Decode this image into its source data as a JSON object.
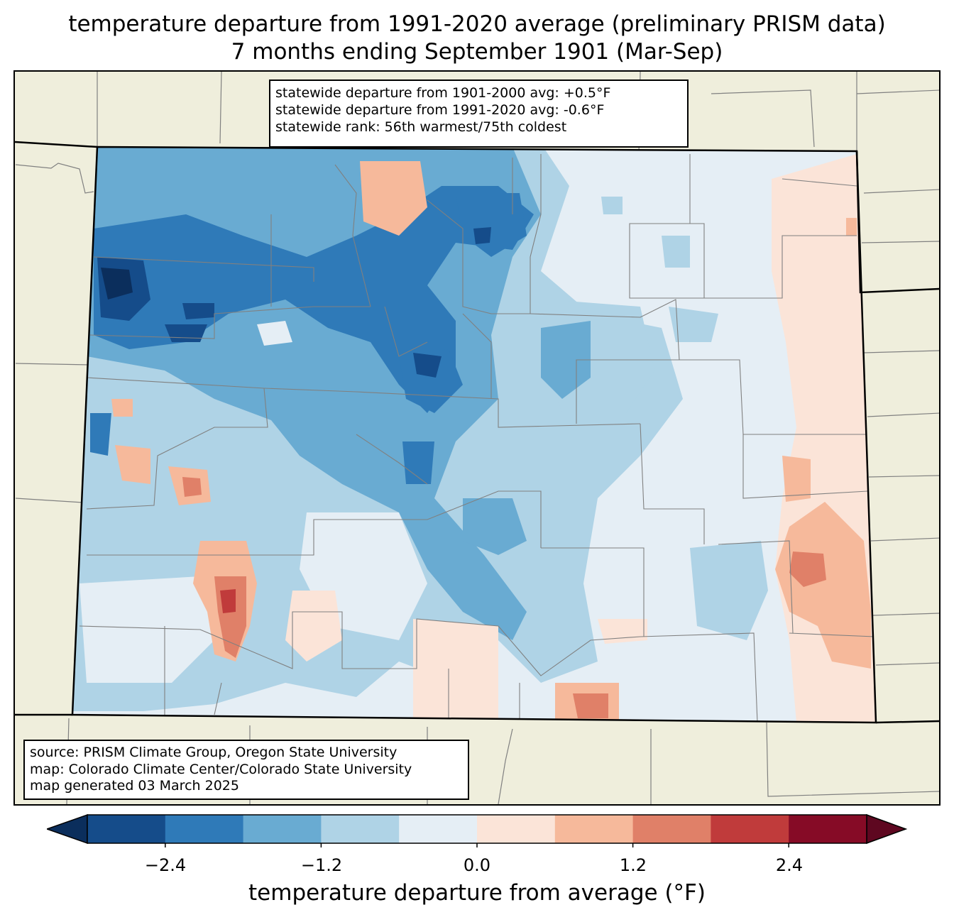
{
  "title_line1": "temperature departure from 1991-2020 average (preliminary PRISM data)",
  "title_line2": "7 months ending September 1901 (Mar-Sep)",
  "stats": {
    "line1": "statewide departure from 1901-2000 avg: +0.5°F",
    "line2": "statewide departure from 1991-2020 avg: -0.6°F",
    "line3": "statewide rank: 56th warmest/75th coldest"
  },
  "source": {
    "line1": "source: PRISM Climate Group, Oregon State University",
    "line2": "map: Colorado Climate Center/Colorado State University",
    "line3": "map generated 03 March 2025"
  },
  "colorbar": {
    "label": "temperature departure from average (°F)",
    "ticks": [
      "−2.4",
      "−1.2",
      "0.0",
      "1.2",
      "2.4"
    ],
    "tick_values": [
      -2.4,
      -1.2,
      0.0,
      1.2,
      2.4
    ],
    "bin_edges": [
      -3.0,
      -2.4,
      -1.8,
      -1.2,
      -0.6,
      0.0,
      0.6,
      1.2,
      1.8,
      2.4,
      3.0
    ],
    "colors": [
      "#154c8a",
      "#2f7ab8",
      "#69abd2",
      "#afd3e6",
      "#e5eef5",
      "#fbe4d8",
      "#f6b99b",
      "#e08068",
      "#c03b3b",
      "#860b26"
    ],
    "under_color": "#0b2e5c",
    "over_color": "#5e0720"
  },
  "colors": {
    "land_outside": "#efeedc",
    "county_lines": "#808080",
    "state_border": "#000000"
  }
}
